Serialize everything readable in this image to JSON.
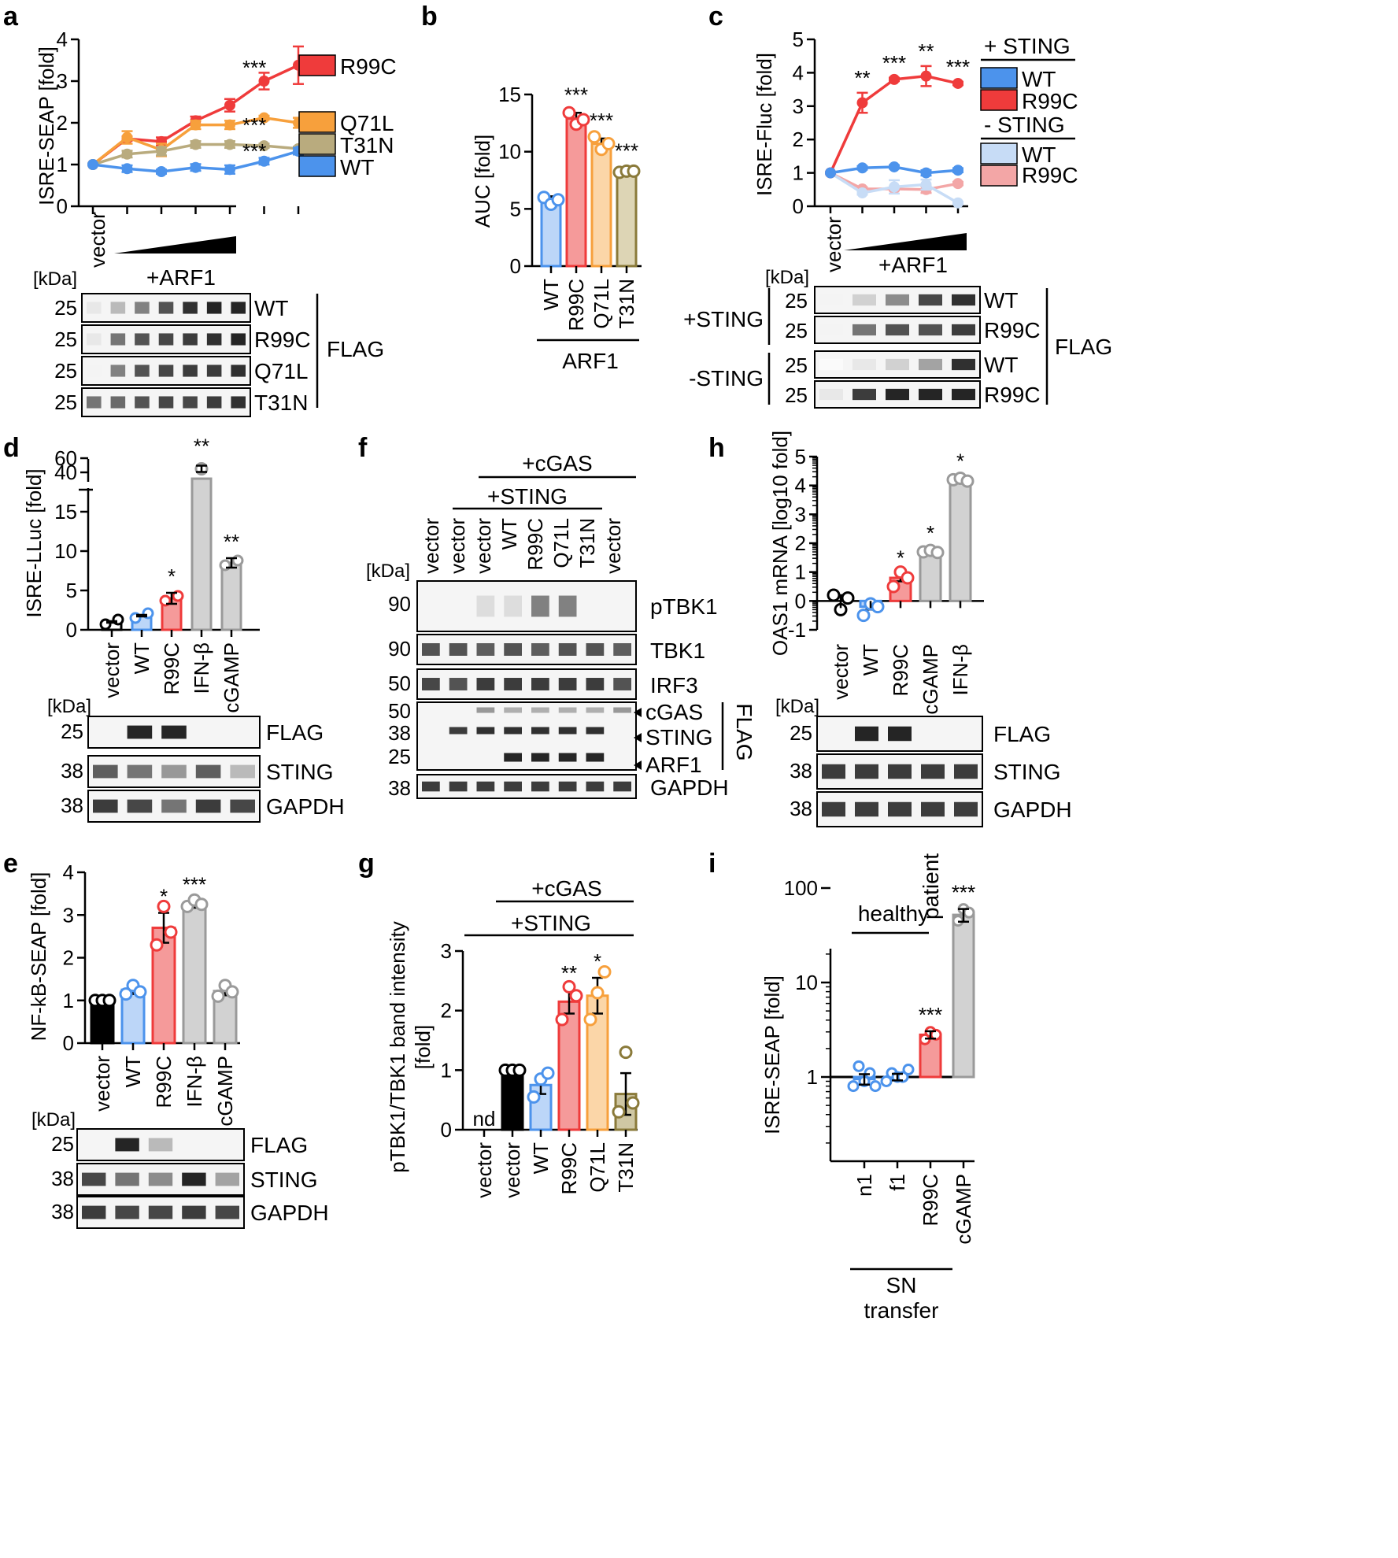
{
  "colors": {
    "red": "#ef3b3b",
    "red_fill": "#f59a9a",
    "orange": "#f7a03c",
    "orange_fill": "#fbd6a8",
    "khaki": "#b9ab7e",
    "khaki_fill": "#ddd5b5",
    "blue": "#4c93ec",
    "blue_fill": "#bcd6f8",
    "light_blue": "#c7dcf6",
    "pink": "#f3a6a6",
    "gray": "#9a9a9a",
    "gray_fill": "#d2d2d2",
    "olive": "#8a7a3a",
    "olive_fill": "#cfc7a3",
    "black": "#000000"
  },
  "chart_data": [
    {
      "panel": "a",
      "type": "line",
      "ylabel": "ISRE-SEAP [fold]",
      "ylim": [
        0,
        4
      ],
      "yticks": [
        "0",
        "1",
        "2",
        "3",
        "4"
      ],
      "xlabel_vector": "vector",
      "xlabel_arf": "+ARF1",
      "series": [
        {
          "name": "R99C",
          "color": "red",
          "values": [
            1,
            1.62,
            1.55,
            2.05,
            2.42,
            3.0,
            3.38
          ],
          "err": [
            0,
            0.05,
            0.1,
            0.1,
            0.15,
            0.2,
            0.45
          ],
          "sig": "***"
        },
        {
          "name": "Q71L",
          "color": "orange",
          "values": [
            1,
            1.65,
            1.35,
            1.95,
            1.95,
            2.12,
            2.0
          ],
          "err": [
            0,
            0.15,
            0.15,
            0.1,
            0.1,
            0.05,
            0.12
          ],
          "sig": "***"
        },
        {
          "name": "T31N",
          "color": "khaki",
          "values": [
            1,
            1.25,
            1.32,
            1.48,
            1.48,
            1.45,
            1.38
          ],
          "err": [
            0,
            0.08,
            0.1,
            0.08,
            0.08,
            0.05,
            0.05
          ],
          "sig": "***"
        },
        {
          "name": "WT",
          "color": "blue",
          "values": [
            1,
            0.9,
            0.83,
            0.93,
            0.88,
            1.08,
            1.32
          ],
          "err": [
            0,
            0.08,
            0.05,
            0.08,
            0.1,
            0.08,
            0.08
          ]
        }
      ],
      "blot": {
        "kda_label": "[kDa]",
        "rows": [
          {
            "kda": "25",
            "label": "WT"
          },
          {
            "kda": "25",
            "label": "R99C"
          },
          {
            "kda": "25",
            "label": "Q71L"
          },
          {
            "kda": "25",
            "label": "T31N"
          }
        ],
        "group_label": "FLAG"
      }
    },
    {
      "panel": "b",
      "type": "bar",
      "ylabel": "AUC [fold]",
      "ylim": [
        0,
        15
      ],
      "yticks": [
        "0",
        "5",
        "10",
        "15"
      ],
      "categories": [
        "WT",
        "R99C",
        "Q71L",
        "T31N"
      ],
      "values": [
        5.7,
        12.9,
        10.7,
        8.3
      ],
      "err": [
        0.4,
        0.5,
        0.45,
        0.2
      ],
      "sig": [
        "",
        "***",
        "***",
        "***"
      ],
      "group_label": "ARF1",
      "points": [
        [
          6.0,
          5.4,
          5.8
        ],
        [
          13.4,
          12.4,
          12.8
        ],
        [
          11.3,
          10.2,
          10.7
        ],
        [
          8.2,
          8.3,
          8.3
        ]
      ]
    },
    {
      "panel": "c",
      "type": "line",
      "ylabel": "ISRE-Fluc [fold]",
      "ylim": [
        0,
        5
      ],
      "yticks": [
        "0",
        "1",
        "2",
        "3",
        "4",
        "5"
      ],
      "xlabel_vector": "vector",
      "xlabel_arf": "+ARF1",
      "legend_title_plus": "+ STING",
      "legend_title_minus": "- STING",
      "series": [
        {
          "name": "WT",
          "group": "+ STING",
          "color": "blue",
          "values": [
            1,
            1.15,
            1.18,
            1.0,
            1.08
          ],
          "err": [
            0,
            0.05,
            0.05,
            0.08,
            0.06
          ]
        },
        {
          "name": "R99C",
          "group": "+ STING",
          "color": "red",
          "values": [
            1,
            3.1,
            3.8,
            3.9,
            3.68
          ],
          "err": [
            0,
            0.3,
            0.05,
            0.3,
            0.05
          ]
        },
        {
          "name": "WT",
          "group": "- STING",
          "color": "light_blue",
          "values": [
            1,
            0.4,
            0.58,
            0.65,
            0.1
          ],
          "err": [
            0,
            0.05,
            0.2,
            0.15,
            0.03
          ]
        },
        {
          "name": "R99C",
          "group": "- STING",
          "color": "pink",
          "values": [
            1,
            0.52,
            0.52,
            0.5,
            0.68
          ],
          "err": [
            0,
            0.05,
            0.05,
            0.1,
            0.05
          ]
        }
      ],
      "sig": [
        "**",
        "***",
        "**",
        "***"
      ],
      "blot": {
        "kda_label": "[kDa]",
        "rows": [
          {
            "kda": "25",
            "label": "WT"
          },
          {
            "kda": "25",
            "label": "R99C"
          },
          {
            "kda": "25",
            "label": "WT"
          },
          {
            "kda": "25",
            "label": "R99C"
          }
        ],
        "group_plus": "+STING",
        "group_minus": "-STING",
        "group_label": "FLAG"
      }
    },
    {
      "panel": "d",
      "type": "bar",
      "ylabel": "ISRE-LLuc [fold]",
      "yticks_low": [
        "0",
        "5",
        "10",
        "15"
      ],
      "yticks_high": [
        "40",
        "60"
      ],
      "categories": [
        "vector",
        "WT",
        "R99C",
        "IFN-β",
        "cGAMP"
      ],
      "values": [
        1.0,
        1.8,
        4.0,
        45,
        8.5
      ],
      "err": [
        0.1,
        0.1,
        0.7,
        3,
        0.6
      ],
      "sig": [
        "",
        "",
        "*",
        "**",
        "**"
      ],
      "blot": {
        "kda_label": "[kDa]",
        "rows": [
          {
            "kda": "25",
            "label": "FLAG"
          },
          {
            "kda": "38",
            "label": "STING"
          },
          {
            "kda": "38",
            "label": "GAPDH"
          }
        ]
      }
    },
    {
      "panel": "e",
      "type": "bar",
      "ylabel": "NF-kB-SEAP [fold]",
      "ylim": [
        0,
        4
      ],
      "yticks": [
        "0",
        "1",
        "2",
        "3",
        "4"
      ],
      "categories": [
        "vector",
        "WT",
        "R99C",
        "IFN-β",
        "cGAMP"
      ],
      "values": [
        1.0,
        1.25,
        2.7,
        3.25,
        1.22
      ],
      "err": [
        0.02,
        0.1,
        0.35,
        0.08,
        0.1
      ],
      "sig": [
        "",
        "",
        "*",
        "***",
        ""
      ],
      "blot": {
        "kda_label": "[kDa]",
        "rows": [
          {
            "kda": "25",
            "label": "FLAG"
          },
          {
            "kda": "38",
            "label": "STING"
          },
          {
            "kda": "38",
            "label": "GAPDH"
          }
        ]
      }
    },
    {
      "panel": "f",
      "type": "blot",
      "lanes": [
        "vector",
        "vector",
        "vector",
        "WT",
        "R99C",
        "Q71L",
        "T31N",
        "vector"
      ],
      "header_cgas": "+cGAS",
      "header_sting": "+STING",
      "kda_label": "[kDa]",
      "rows": [
        {
          "kda": "90",
          "label": "pTBK1"
        },
        {
          "kda": "90",
          "label": "TBK1"
        },
        {
          "kda": "50",
          "label": "IRF3"
        },
        {
          "kda": "50",
          "label": "cGAS"
        },
        {
          "kda": "38",
          "label": "STING"
        },
        {
          "kda": "25",
          "label": "ARF1"
        },
        {
          "kda": "38",
          "label": "GAPDH"
        }
      ],
      "group_label": "FLAG"
    },
    {
      "panel": "g",
      "type": "bar",
      "ylabel": "pTBK1/TBK1 band intensity",
      "ylabel2": "[fold]",
      "ylim": [
        0,
        3
      ],
      "yticks": [
        "0",
        "1",
        "2",
        "3"
      ],
      "categories": [
        "vector",
        "vector",
        "WT",
        "R99C",
        "Q71L",
        "T31N"
      ],
      "values": [
        0,
        1.0,
        0.75,
        2.15,
        2.25,
        0.6
      ],
      "err": [
        0,
        0,
        0.15,
        0.2,
        0.3,
        0.35
      ],
      "sig": [
        "",
        "",
        "",
        "**",
        "*",
        ""
      ],
      "nd": "nd",
      "header_cgas": "+cGAS",
      "header_sting": "+STING"
    },
    {
      "panel": "h",
      "type": "bar",
      "ylabel": "OAS1 mRNA [log10 fold]",
      "ylim": [
        -1,
        5
      ],
      "yticks": [
        "-1",
        "0",
        "1",
        "2",
        "3",
        "4",
        "5"
      ],
      "categories": [
        "vector",
        "WT",
        "R99C",
        "cGAMP",
        "IFN-β"
      ],
      "values": [
        0,
        -0.2,
        0.8,
        1.7,
        4.2
      ],
      "err": [
        0.2,
        0.1,
        0.12,
        0.08,
        0.08
      ],
      "sig": [
        "",
        "",
        "*",
        "*",
        "*"
      ],
      "blot": {
        "kda_label": "[kDa]",
        "rows": [
          {
            "kda": "25",
            "label": "FLAG"
          },
          {
            "kda": "38",
            "label": "STING"
          },
          {
            "kda": "38",
            "label": "GAPDH"
          }
        ]
      }
    },
    {
      "panel": "i",
      "type": "bar",
      "ylabel": "ISRE-SEAP [fold]",
      "scale": "log",
      "yticks": [
        "1",
        "10",
        "100"
      ],
      "categories": [
        "n1",
        "f1",
        "R99C",
        "cGAMP"
      ],
      "values": [
        0.95,
        1.0,
        2.8,
        52
      ],
      "err": [
        0.12,
        0.08,
        0.25,
        8
      ],
      "sig": [
        "",
        "",
        "***",
        "***"
      ],
      "group_healthy": "healthy",
      "group_patient": "patient",
      "group_sn": "SN",
      "group_transfer": "transfer"
    }
  ]
}
